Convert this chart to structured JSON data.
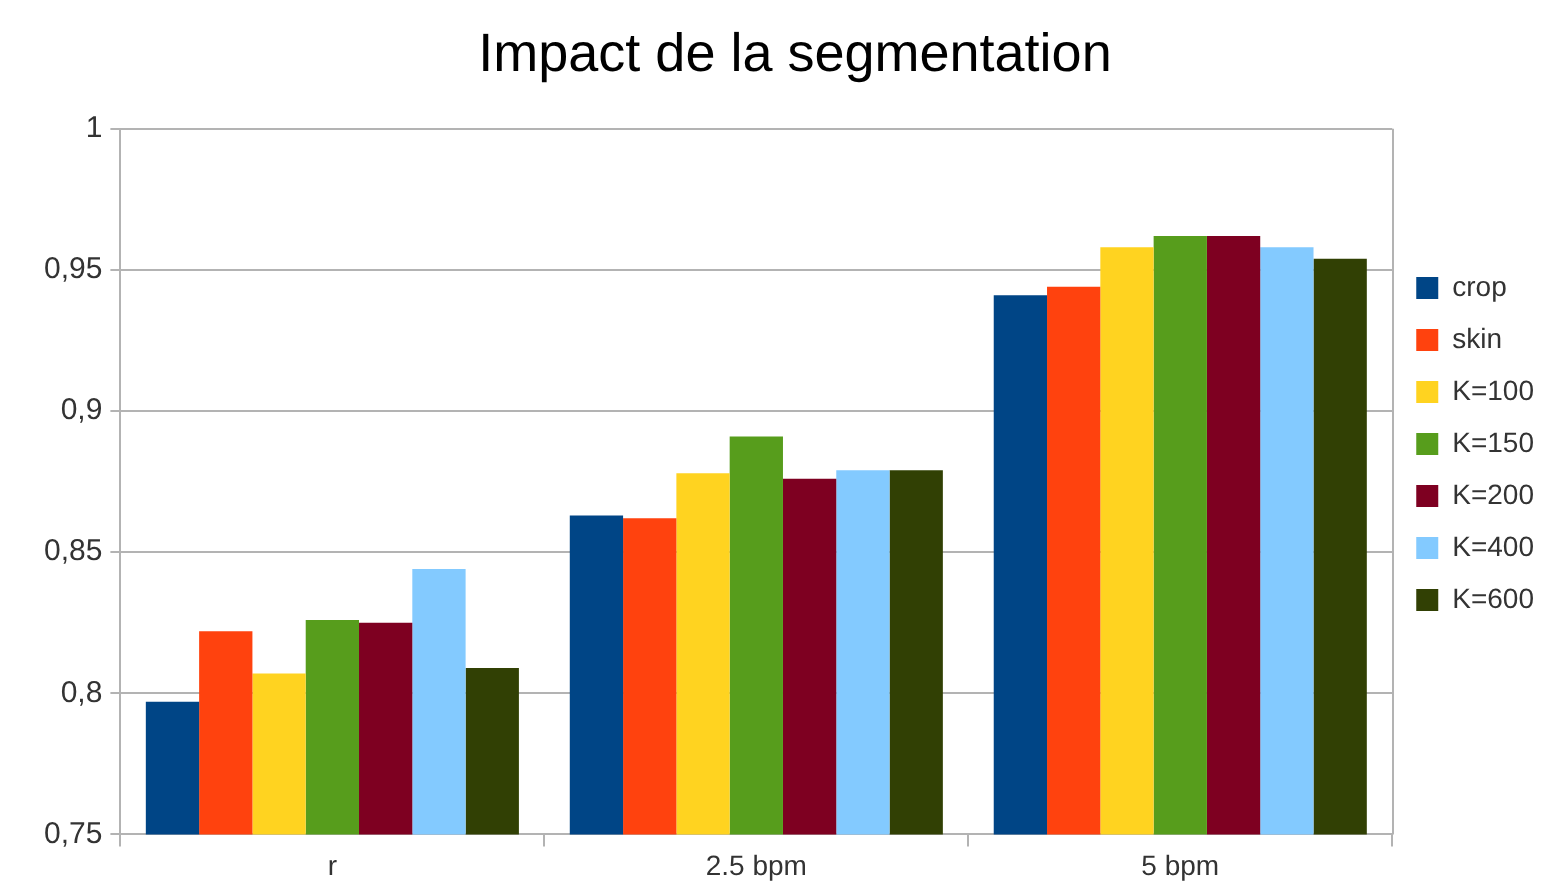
{
  "chart_data": {
    "type": "bar",
    "title": "Impact de la segmentation",
    "categories": [
      "r",
      "2.5 bpm",
      "5 bpm"
    ],
    "series": [
      {
        "name": "crop",
        "color": "#004586",
        "values": [
          0.797,
          0.863,
          0.941
        ]
      },
      {
        "name": "skin",
        "color": "#ff420e",
        "values": [
          0.822,
          0.862,
          0.944
        ]
      },
      {
        "name": "K=100",
        "color": "#ffd320",
        "values": [
          0.807,
          0.878,
          0.958
        ]
      },
      {
        "name": "K=150",
        "color": "#579d1c",
        "values": [
          0.826,
          0.891,
          0.962
        ]
      },
      {
        "name": "K=200",
        "color": "#7e0021",
        "values": [
          0.825,
          0.876,
          0.962
        ]
      },
      {
        "name": "K=400",
        "color": "#83caff",
        "values": [
          0.844,
          0.879,
          0.958
        ]
      },
      {
        "name": "K=600",
        "color": "#314004",
        "values": [
          0.809,
          0.879,
          0.954
        ]
      }
    ],
    "ylim": [
      0.75,
      1
    ],
    "yticks": [
      {
        "value": 0.75,
        "label": "0,75"
      },
      {
        "value": 0.8,
        "label": "0,8"
      },
      {
        "value": 0.85,
        "label": "0,85"
      },
      {
        "value": 0.9,
        "label": "0,9"
      },
      {
        "value": 0.95,
        "label": "0,95"
      },
      1
    ],
    "grid": "y",
    "legend": "right"
  }
}
